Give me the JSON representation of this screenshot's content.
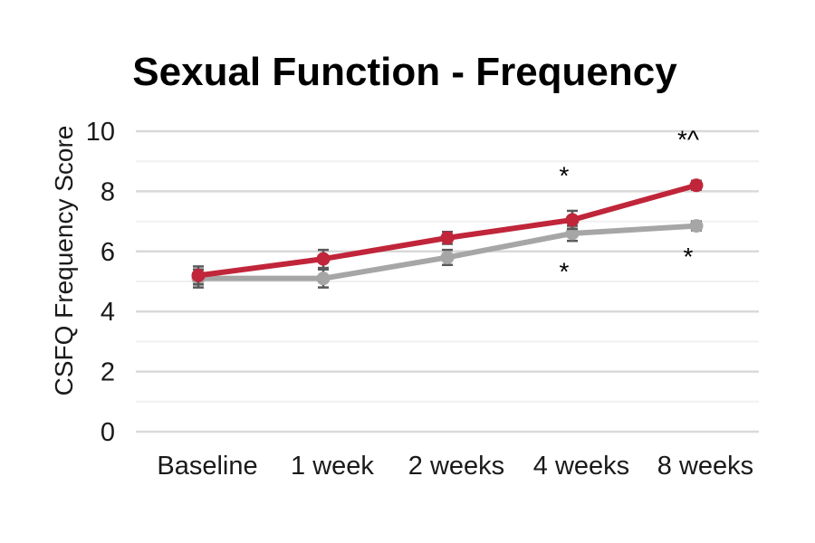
{
  "chart_data": {
    "type": "line",
    "title": "Sexual Function - Frequency",
    "xlabel": "",
    "ylabel": "CSFQ Frequency Score",
    "categories": [
      "Baseline",
      "1 week",
      "2 weeks",
      "4 weeks",
      "8 weeks"
    ],
    "ylim": [
      0,
      10
    ],
    "yticks": [
      0,
      2,
      4,
      6,
      8,
      10
    ],
    "grid": true,
    "minor_grid": true,
    "legend": "none",
    "series": [
      {
        "color": "#c0253a",
        "values": [
          5.2,
          5.75,
          6.45,
          7.05,
          8.2
        ],
        "errors": [
          0.3,
          0.3,
          0.2,
          0.3,
          0.15
        ]
      },
      {
        "color": "#a6a6a6",
        "values": [
          5.1,
          5.1,
          5.8,
          6.6,
          6.85
        ],
        "errors": [
          0.3,
          0.3,
          0.25,
          0.25,
          0.15
        ]
      }
    ],
    "annotations": [
      {
        "text": "*",
        "category": "4 weeks",
        "y": 8.6
      },
      {
        "text": "*^",
        "category": "8 weeks",
        "y": 9.8
      },
      {
        "text": "*",
        "category": "4 weeks",
        "y": 5.4
      },
      {
        "text": "*",
        "category": "8 weeks",
        "y": 5.9
      }
    ]
  }
}
